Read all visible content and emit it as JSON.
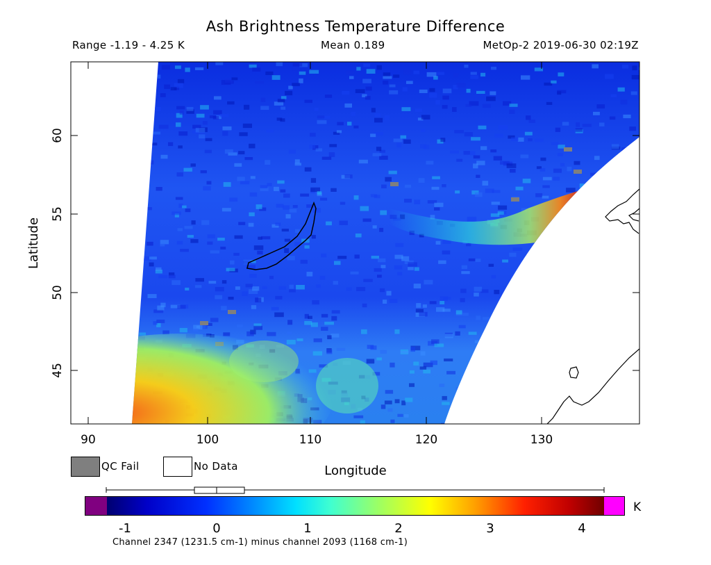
{
  "title": "Ash Brightness Temperature Difference",
  "stats": {
    "range": "Range -1.19 - 4.25 K",
    "mean": "Mean 0.189",
    "satellite": "MetOp-2 2019-06-30 02:19Z"
  },
  "axes": {
    "xlabel": "Longitude",
    "ylabel": "Latitude",
    "xticks": [
      "90",
      "100",
      "110",
      "120",
      "130"
    ],
    "yticks": [
      "45",
      "50",
      "55",
      "60"
    ]
  },
  "legend": {
    "qc_fail": {
      "label": "QC Fail",
      "color": "#7f7f7f"
    },
    "no_data": {
      "label": "No Data",
      "color": "#ffffff"
    }
  },
  "colorbar": {
    "unit": "K",
    "ticks": [
      "-1",
      "0",
      "1",
      "2",
      "3",
      "4"
    ],
    "under_color": "#800080",
    "over_color": "#ff00ff",
    "caption": "Channel 2347 (1231.5 cm-1) minus channel 2093 (1168 cm-1)"
  }
}
